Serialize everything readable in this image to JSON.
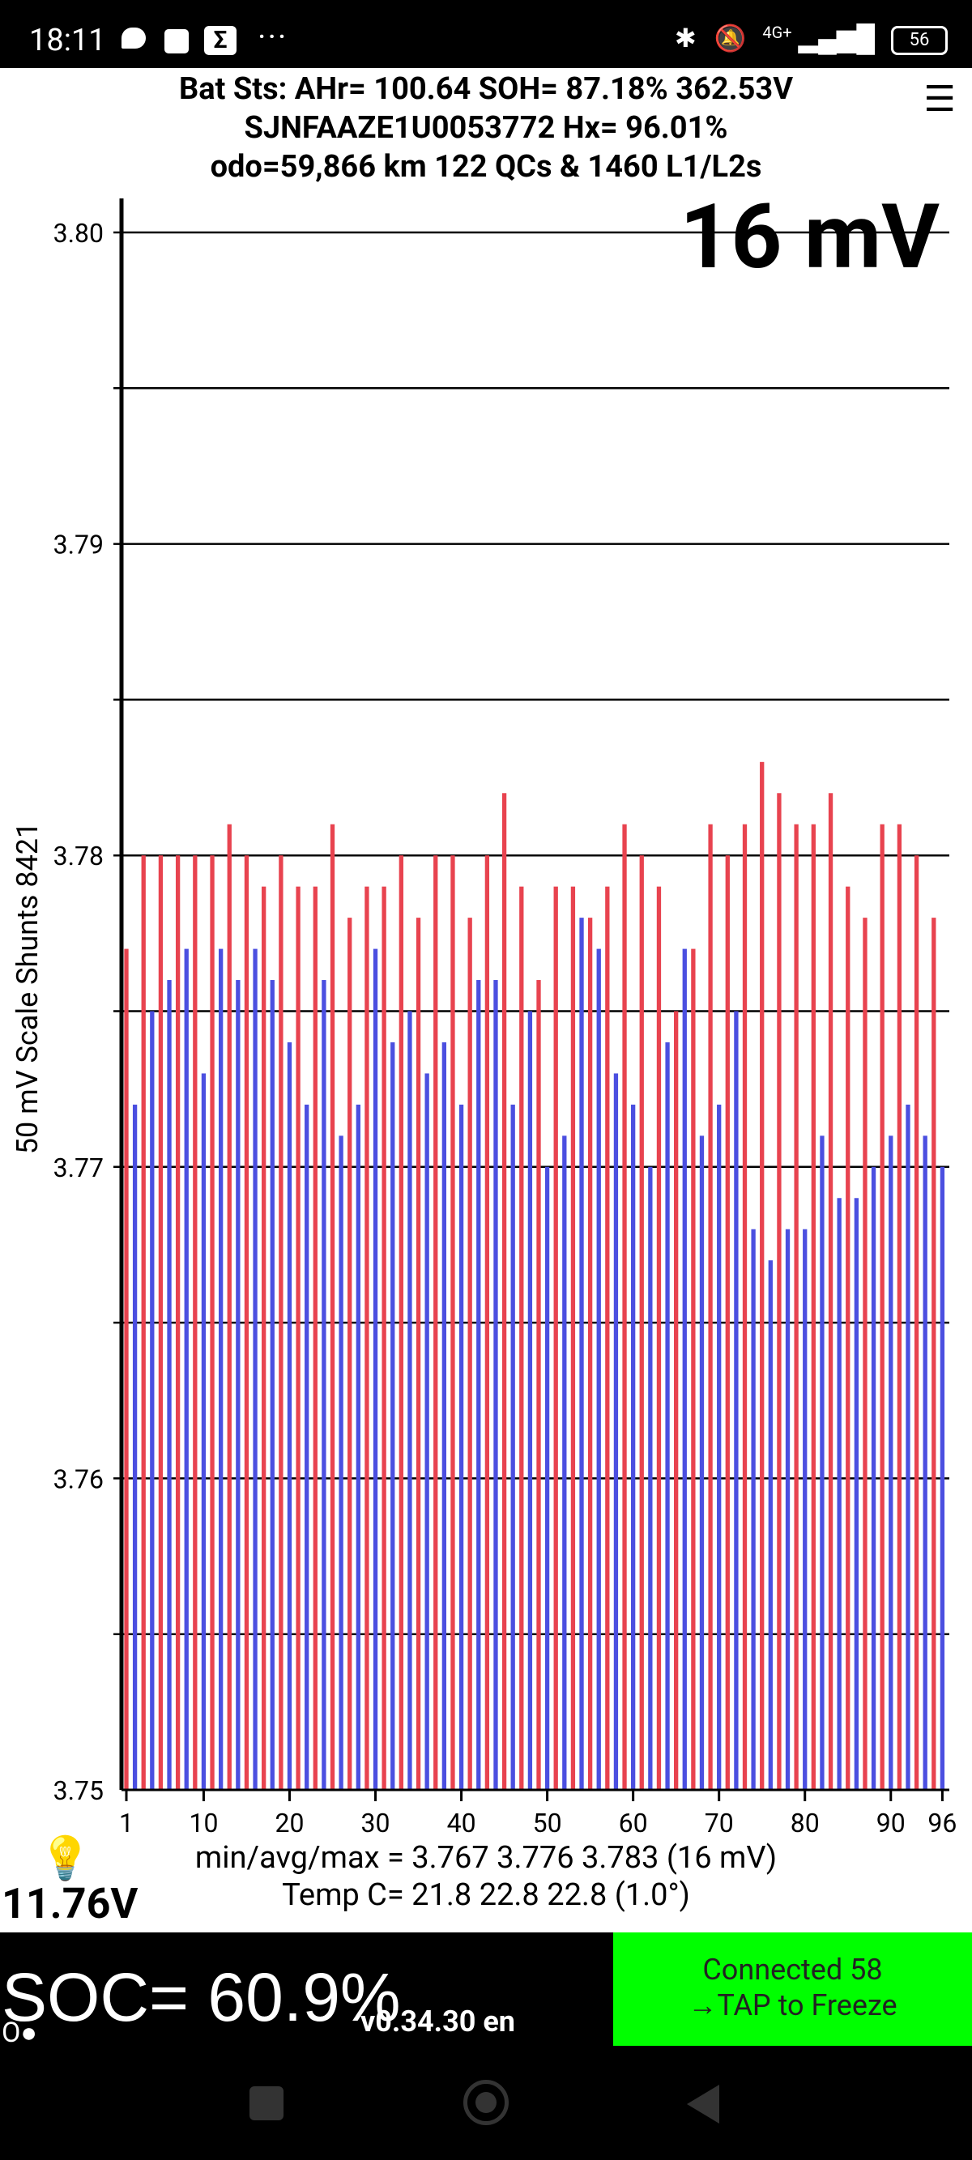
{
  "status_bar": {
    "time": "18:11",
    "network": "4G+",
    "battery": "56",
    "icons": [
      "chat-bubble-icon",
      "square-icon",
      "sigma-icon",
      "more-icon",
      "bluetooth-icon",
      "bell-off-icon",
      "signal-icon",
      "battery-icon"
    ]
  },
  "header": {
    "line1": "Bat Sts:  AHr= 100.64  SOH= 87.18%   362.53V",
    "line2": "SJNFAAZE1U0053772   Hx= 96.01%",
    "line3": "odo=59,866 km  122 QCs & 1460 L1/L2s"
  },
  "spread_label": "16 mV",
  "aux_voltage": "11.76V",
  "footer": {
    "minavgmax": "min/avg/max = 3.767 3.776 3.783  (16 mV)",
    "temp": "Temp C= 21.8  22.8  22.8  (1.0°)"
  },
  "soc": "SOC= 60.9%",
  "indicator": "O●",
  "version": "v0.34.30 en",
  "connection": {
    "line1": "Connected 58",
    "line2": "→TAP to Freeze"
  },
  "colors": {
    "odd_cell": "#e8434f",
    "even_cell": "#4b4fe0",
    "connect_bg": "#00ff00"
  },
  "chart_data": {
    "type": "bar",
    "ylabel": "50 mV Scale   Shunts 8421",
    "ylim": [
      3.75,
      3.8
    ],
    "yticks": [
      3.75,
      3.76,
      3.77,
      3.78,
      3.79,
      3.8
    ],
    "ytick_labels": [
      "3.75",
      "3.76",
      "3.77",
      "3.78",
      "3.79",
      "3.80"
    ],
    "gridlines": [
      3.755,
      3.76,
      3.765,
      3.77,
      3.775,
      3.78,
      3.785,
      3.79,
      3.795,
      3.8
    ],
    "xticks": [
      1,
      10,
      20,
      30,
      40,
      50,
      60,
      70,
      80,
      90,
      96
    ],
    "x": [
      1,
      2,
      3,
      4,
      5,
      6,
      7,
      8,
      9,
      10,
      11,
      12,
      13,
      14,
      15,
      16,
      17,
      18,
      19,
      20,
      21,
      22,
      23,
      24,
      25,
      26,
      27,
      28,
      29,
      30,
      31,
      32,
      33,
      34,
      35,
      36,
      37,
      38,
      39,
      40,
      41,
      42,
      43,
      44,
      45,
      46,
      47,
      48,
      49,
      50,
      51,
      52,
      53,
      54,
      55,
      56,
      57,
      58,
      59,
      60,
      61,
      62,
      63,
      64,
      65,
      66,
      67,
      68,
      69,
      70,
      71,
      72,
      73,
      74,
      75,
      76,
      77,
      78,
      79,
      80,
      81,
      82,
      83,
      84,
      85,
      86,
      87,
      88,
      89,
      90,
      91,
      92,
      93,
      94,
      95,
      96
    ],
    "values": [
      3.777,
      3.772,
      3.78,
      3.775,
      3.78,
      3.776,
      3.78,
      3.777,
      3.78,
      3.773,
      3.78,
      3.777,
      3.781,
      3.776,
      3.78,
      3.777,
      3.779,
      3.776,
      3.78,
      3.774,
      3.779,
      3.772,
      3.779,
      3.776,
      3.781,
      3.771,
      3.778,
      3.772,
      3.779,
      3.777,
      3.779,
      3.774,
      3.78,
      3.775,
      3.778,
      3.773,
      3.78,
      3.774,
      3.78,
      3.772,
      3.778,
      3.776,
      3.78,
      3.776,
      3.782,
      3.772,
      3.779,
      3.775,
      3.776,
      3.77,
      3.779,
      3.771,
      3.779,
      3.778,
      3.778,
      3.777,
      3.779,
      3.773,
      3.781,
      3.772,
      3.78,
      3.77,
      3.779,
      3.774,
      3.775,
      3.777,
      3.777,
      3.771,
      3.781,
      3.772,
      3.78,
      3.775,
      3.781,
      3.768,
      3.783,
      3.767,
      3.782,
      3.768,
      3.781,
      3.768,
      3.781,
      3.771,
      3.782,
      3.769,
      3.779,
      3.769,
      3.778,
      3.77,
      3.781,
      3.771,
      3.781,
      3.772,
      3.78,
      3.771,
      3.778,
      3.77
    ]
  }
}
